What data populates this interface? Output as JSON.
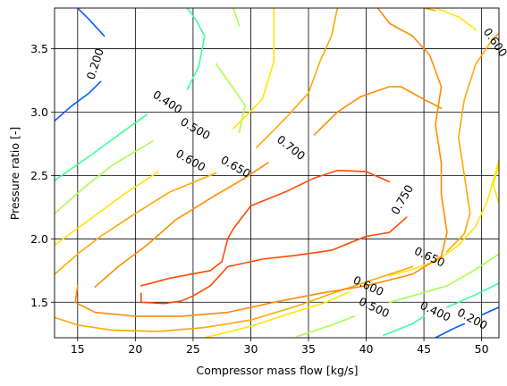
{
  "chart_data": {
    "type": "contour",
    "xlabel": "Compressor mass flow [kg/s]",
    "ylabel": "Pressure ratio [-]",
    "xlim": [
      13,
      51.5
    ],
    "ylim": [
      1.22,
      3.82
    ],
    "xticks": [
      15,
      20,
      25,
      30,
      35,
      40,
      45,
      50
    ],
    "yticks": [
      1.5,
      2.0,
      2.5,
      3.0,
      3.5
    ],
    "xtick_labels": [
      "15",
      "20",
      "25",
      "30",
      "35",
      "40",
      "45",
      "50"
    ],
    "ytick_labels": [
      "1.5",
      "2.0",
      "2.5",
      "3.0",
      "3.5"
    ],
    "grid": true,
    "levels": [
      {
        "value": 0.2,
        "label": "0.200",
        "color": "#0060ff",
        "lines": [
          [
            [
              13,
              2.93
            ],
            [
              14.5,
              3.05
            ],
            [
              16,
              3.15
            ],
            [
              17,
              3.24
            ]
          ],
          [
            [
              15,
              3.82
            ],
            [
              16,
              3.73
            ],
            [
              17.3,
              3.6
            ]
          ],
          [
            [
              46,
              1.22
            ],
            [
              47.5,
              1.29
            ],
            [
              48.5,
              1.33
            ]
          ],
          [
            [
              50,
              1.4
            ],
            [
              51.5,
              1.46
            ]
          ]
        ],
        "labels": [
          {
            "text": "0.200",
            "at": [
              16.5,
              3.38
            ],
            "angle": 72
          },
          {
            "text": "0.200",
            "at": [
              49.2,
              1.37
            ],
            "angle": -28
          }
        ]
      },
      {
        "value": 0.4,
        "label": "0.400",
        "color": "#3cff9a",
        "lines": [
          [
            [
              13,
              2.46
            ],
            [
              16,
              2.65
            ],
            [
              19,
              2.85
            ],
            [
              21,
              2.98
            ]
          ],
          [
            [
              24.5,
              3.18
            ],
            [
              25.5,
              3.36
            ],
            [
              26,
              3.6
            ],
            [
              25.3,
              3.72
            ],
            [
              24.5,
              3.82
            ]
          ],
          [
            [
              41.5,
              1.24
            ],
            [
              44,
              1.33
            ],
            [
              45,
              1.39
            ]
          ],
          [
            [
              47,
              1.46
            ],
            [
              49.5,
              1.56
            ],
            [
              51.5,
              1.65
            ]
          ]
        ],
        "labels": [
          {
            "text": "0.400",
            "at": [
              22.8,
              3.08
            ],
            "angle": -33
          },
          {
            "text": "0.400",
            "at": [
              46,
              1.43
            ],
            "angle": -25
          }
        ]
      },
      {
        "value": 0.5,
        "label": "0.500",
        "color": "#a8ff50",
        "lines": [
          [
            [
              13,
              2.2
            ],
            [
              15.5,
              2.4
            ],
            [
              18,
              2.58
            ],
            [
              21.5,
              2.77
            ]
          ],
          [
            [
              27,
              3.38
            ],
            [
              29,
              3.12
            ],
            [
              29.5,
              3.05
            ],
            [
              29,
              2.84
            ]
          ],
          [
            [
              29,
              3.68
            ],
            [
              28.5,
              3.82
            ]
          ],
          [
            [
              34,
              1.23
            ],
            [
              37,
              1.32
            ],
            [
              39,
              1.39
            ]
          ],
          [
            [
              42,
              1.5
            ],
            [
              44,
              1.55
            ],
            [
              47,
              1.63
            ],
            [
              49.5,
              1.76
            ],
            [
              51.5,
              1.88
            ]
          ]
        ],
        "labels": [
          {
            "text": "0.500",
            "at": [
              25.2,
              2.87
            ],
            "angle": -30
          },
          {
            "text": "0.500",
            "at": [
              40.7,
              1.46
            ],
            "angle": -25
          }
        ]
      },
      {
        "value": 0.6,
        "label": "0.600",
        "color": "#ffe600",
        "lines": [
          [
            [
              13,
              1.95
            ],
            [
              16,
              2.15
            ],
            [
              19,
              2.35
            ],
            [
              22,
              2.53
            ]
          ],
          [
            [
              28.5,
              2.87
            ],
            [
              31,
              3.1
            ],
            [
              32,
              3.4
            ],
            [
              32,
              3.82
            ]
          ],
          [
            [
              26,
              1.22
            ],
            [
              30,
              1.31
            ],
            [
              33,
              1.4
            ],
            [
              36.5,
              1.5
            ],
            [
              38.5,
              1.58
            ]
          ],
          [
            [
              42,
              1.71
            ],
            [
              44,
              1.76
            ],
            [
              46,
              1.82
            ],
            [
              48,
              1.95
            ],
            [
              49.5,
              2.1
            ],
            [
              50.5,
              2.3
            ],
            [
              51.5,
              2.62
            ]
          ],
          [
            [
              46,
              3.82
            ],
            [
              48,
              3.75
            ],
            [
              49.5,
              3.65
            ]
          ],
          [
            [
              51.5,
              2.28
            ],
            [
              51,
              2.43
            ],
            [
              51.5,
              2.58
            ]
          ]
        ],
        "labels": [
          {
            "text": "0.600",
            "at": [
              24.8,
              2.62
            ],
            "angle": -30
          },
          {
            "text": "0.600",
            "at": [
              40.2,
              1.63
            ],
            "angle": -25
          },
          {
            "text": "0.600",
            "at": [
              51.2,
              3.55
            ],
            "angle": -55
          }
        ]
      },
      {
        "value": 0.65,
        "label": "0.650",
        "color": "#ffa800",
        "lines": [
          [
            [
              13,
              1.72
            ],
            [
              15,
              1.88
            ],
            [
              17,
              2.02
            ],
            [
              20,
              2.2
            ],
            [
              23,
              2.37
            ],
            [
              27,
              2.52
            ]
          ],
          [
            [
              30.5,
              2.72
            ],
            [
              33,
              2.95
            ],
            [
              35,
              3.15
            ],
            [
              36,
              3.4
            ],
            [
              37,
              3.6
            ],
            [
              37.5,
              3.82
            ]
          ],
          [
            [
              13,
              1.38
            ],
            [
              15,
              1.32
            ],
            [
              18,
              1.28
            ],
            [
              22,
              1.27
            ],
            [
              26,
              1.3
            ],
            [
              30,
              1.36
            ],
            [
              34,
              1.47
            ],
            [
              38,
              1.6
            ],
            [
              42,
              1.72
            ],
            [
              44,
              1.78
            ]
          ],
          [
            [
              47,
              1.9
            ],
            [
              48.5,
              2.04
            ],
            [
              49,
              2.2
            ],
            [
              48.5,
              2.5
            ],
            [
              48,
              2.8
            ],
            [
              48.5,
              3.1
            ],
            [
              49.5,
              3.38
            ],
            [
              51,
              3.58
            ],
            [
              51.5,
              3.62
            ]
          ],
          [
            [
              45,
              3.82
            ],
            [
              46,
              3.8
            ]
          ]
        ],
        "labels": [
          {
            "text": "0.650",
            "at": [
              28.7,
              2.57
            ],
            "angle": -30
          },
          {
            "text": "0.650",
            "at": [
              45.5,
              1.86
            ],
            "angle": -25
          }
        ]
      },
      {
        "value": 0.7,
        "label": "0.700",
        "color": "#ff8c00",
        "lines": [
          [
            [
              16.5,
              1.62
            ],
            [
              18.5,
              1.78
            ],
            [
              21,
              1.95
            ],
            [
              23.5,
              2.15
            ],
            [
              26.5,
              2.32
            ],
            [
              29.5,
              2.48
            ],
            [
              31.5,
              2.6
            ]
          ],
          [
            [
              15,
              1.63
            ],
            [
              14.8,
              1.5
            ],
            [
              16.5,
              1.42
            ],
            [
              20,
              1.39
            ],
            [
              24,
              1.39
            ],
            [
              28,
              1.42
            ],
            [
              32,
              1.5
            ],
            [
              36,
              1.57
            ],
            [
              40,
              1.63
            ],
            [
              44,
              1.72
            ],
            [
              46.5,
              1.86
            ],
            [
              47,
              2.05
            ],
            [
              46.5,
              2.35
            ],
            [
              46.5,
              2.6
            ],
            [
              46,
              2.9
            ],
            [
              46.5,
              3.2
            ],
            [
              45.5,
              3.45
            ],
            [
              44,
              3.6
            ],
            [
              42,
              3.7
            ],
            [
              41,
              3.82
            ]
          ],
          [
            [
              35.5,
              2.82
            ],
            [
              37.5,
              3.0
            ],
            [
              39.5,
              3.12
            ],
            [
              42,
              3.2
            ],
            [
              43,
              3.2
            ],
            [
              45,
              3.1
            ],
            [
              46.5,
              3.03
            ]
          ]
        ],
        "labels": [
          {
            "text": "0.700",
            "at": [
              33.5,
              2.72
            ],
            "angle": -38
          }
        ]
      },
      {
        "value": 0.75,
        "label": "0.750",
        "color": "#ff4a00",
        "lines": [
          [
            [
              20.5,
              1.57
            ],
            [
              20.5,
              1.5
            ],
            [
              22.5,
              1.49
            ],
            [
              24,
              1.51
            ],
            [
              25,
              1.55
            ],
            [
              26.5,
              1.63
            ],
            [
              28,
              1.78
            ],
            [
              31,
              1.84
            ],
            [
              34,
              1.87
            ],
            [
              37,
              1.91
            ],
            [
              40,
              2.02
            ],
            [
              42,
              2.05
            ],
            [
              43.5,
              2.17
            ]
          ],
          [
            [
              20.5,
              1.63
            ],
            [
              23,
              1.69
            ],
            [
              26.5,
              1.75
            ],
            [
              27.5,
              1.82
            ],
            [
              28,
              2.0
            ],
            [
              28.5,
              2.08
            ],
            [
              30,
              2.26
            ],
            [
              33,
              2.37
            ],
            [
              35.5,
              2.48
            ],
            [
              37.5,
              2.54
            ],
            [
              40,
              2.53
            ],
            [
              42,
              2.45
            ]
          ]
        ],
        "labels": [
          {
            "text": "0.750",
            "at": [
              43.1,
              2.31
            ],
            "angle": 60
          }
        ]
      }
    ]
  }
}
